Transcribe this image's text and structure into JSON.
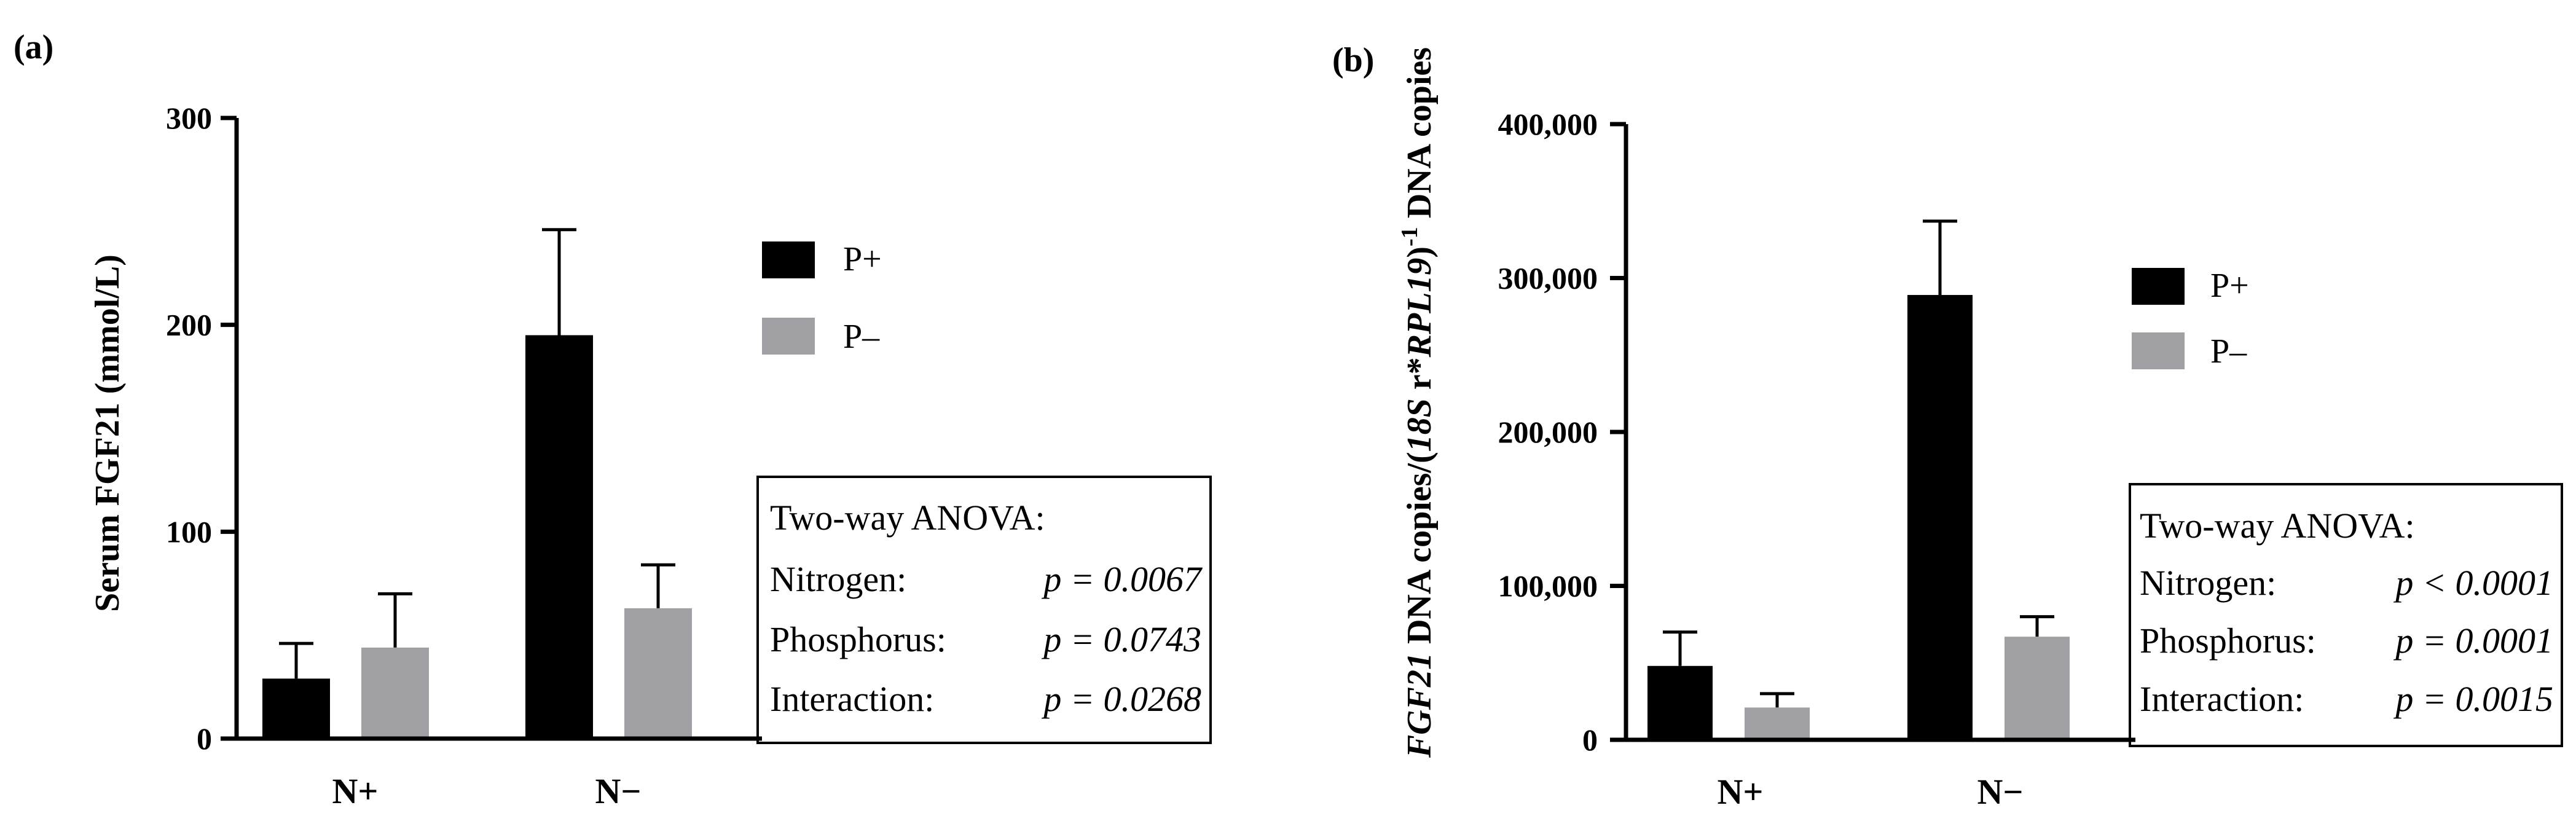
{
  "colors": {
    "P+": "#000000",
    "P-": "#a0a0a4"
  },
  "chart_data": [
    {
      "panel": "(a)",
      "type": "bar",
      "categories": [
        "N+",
        "N−"
      ],
      "series": [
        {
          "name": "P+",
          "values": [
            29,
            195
          ],
          "errors": [
            17,
            51
          ]
        },
        {
          "name": "P–",
          "values": [
            44,
            63
          ],
          "errors": [
            26,
            21
          ]
        }
      ],
      "ylabel": "Serum FGF21 (mmol/L)",
      "ylim": [
        0,
        300
      ],
      "yticks": [
        0,
        100,
        200,
        300
      ],
      "ytick_labels": [
        "0",
        "100",
        "200",
        "300"
      ],
      "legend_position": "right",
      "annotation": {
        "title": "Two-way ANOVA:",
        "rows": [
          {
            "factor": "Nitrogen:",
            "stat": "p = 0.0067"
          },
          {
            "factor": "Phosphorus:",
            "stat": "p = 0.0743"
          },
          {
            "factor": "Interaction:",
            "stat": "p = 0.0268"
          }
        ]
      }
    },
    {
      "panel": "(b)",
      "type": "bar",
      "categories": [
        "N+",
        "N−"
      ],
      "series": [
        {
          "name": "P+",
          "values": [
            48000,
            289000
          ],
          "errors": [
            22000,
            48000
          ]
        },
        {
          "name": "P–",
          "values": [
            21000,
            67000
          ],
          "errors": [
            9000,
            13000
          ]
        }
      ],
      "ylabel_parts": [
        "FGF21",
        " DNA copies/(",
        "18S",
        " r*",
        "RPL19",
        ")",
        "-1",
        " DNA copies"
      ],
      "ylim": [
        0,
        400000
      ],
      "yticks": [
        0,
        100000,
        200000,
        300000,
        400000
      ],
      "ytick_labels": [
        "0",
        "100,000",
        "200,000",
        "300,000",
        "400,000"
      ],
      "legend_position": "right",
      "annotation": {
        "title": "Two-way ANOVA:",
        "rows": [
          {
            "factor": "Nitrogen:",
            "stat": "p < 0.0001"
          },
          {
            "factor": "Phosphorus:",
            "stat": "p = 0.0001"
          },
          {
            "factor": "Interaction:",
            "stat": "p = 0.0015"
          }
        ]
      }
    }
  ]
}
